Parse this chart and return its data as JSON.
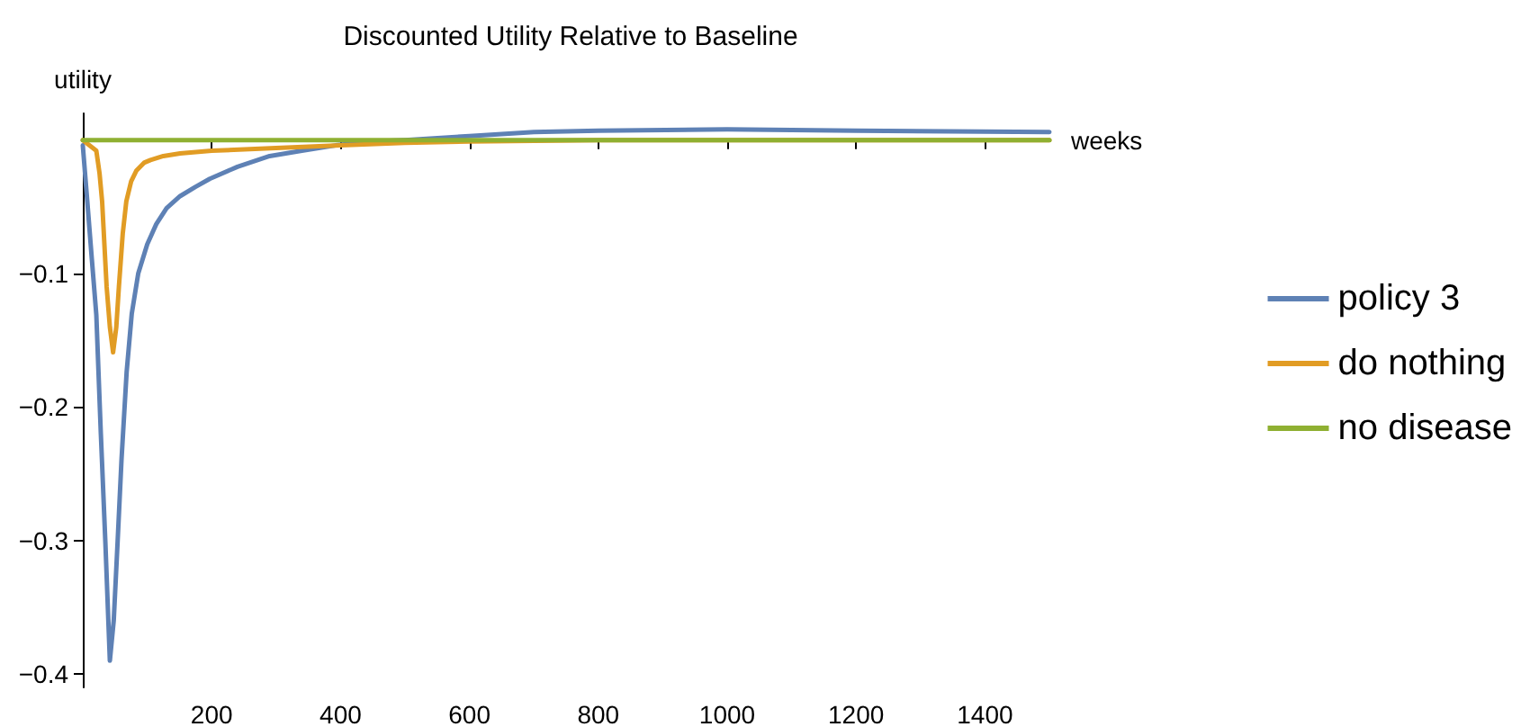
{
  "chart_data": {
    "type": "line",
    "title": "Discounted Utility Relative to Baseline",
    "xlabel": "weeks",
    "ylabel": "utility",
    "xlim": [
      0,
      1500
    ],
    "ylim": [
      -0.41,
      0.02
    ],
    "xticks": [
      200,
      400,
      600,
      800,
      1000,
      1200,
      1400
    ],
    "yticks": [
      -0.4,
      -0.3,
      -0.2,
      -0.1
    ],
    "grid": false,
    "legend": "right",
    "marker": "none",
    "line_style": "solid",
    "series": [
      {
        "name": "policy 3",
        "color": "#5e81b5",
        "x": [
          0,
          7,
          14,
          21,
          28,
          35,
          42,
          48,
          54,
          60,
          68,
          76,
          86,
          100,
          114,
          130,
          151,
          175,
          197,
          240,
          290,
          340,
          392,
          450,
          500,
          600,
          700,
          800,
          1000,
          1200,
          1500
        ],
        "values": [
          -0.004,
          -0.046,
          -0.089,
          -0.131,
          -0.22,
          -0.301,
          -0.39,
          -0.36,
          -0.301,
          -0.24,
          -0.174,
          -0.13,
          -0.1,
          -0.078,
          -0.063,
          -0.051,
          -0.042,
          -0.035,
          -0.029,
          -0.02,
          -0.012,
          -0.008,
          -0.004,
          -0.001,
          0,
          0.003,
          0.006,
          0.007,
          0.008,
          0.007,
          0.006
        ]
      },
      {
        "name": "do nothing",
        "color": "#e19c24",
        "x": [
          0,
          21,
          26,
          30,
          37,
          42,
          47,
          52,
          56,
          62,
          67.5,
          75,
          83,
          95,
          105,
          125,
          151,
          200,
          300,
          400,
          500,
          600,
          800,
          1000,
          1200,
          1500
        ],
        "values": [
          0,
          -0.008,
          -0.025,
          -0.046,
          -0.11,
          -0.14,
          -0.159,
          -0.14,
          -0.11,
          -0.07,
          -0.046,
          -0.031,
          -0.023,
          -0.017,
          -0.015,
          -0.012,
          -0.01,
          -0.008,
          -0.006,
          -0.004,
          -0.002,
          -0.001,
          0,
          0,
          0,
          0
        ]
      },
      {
        "name": "no disease",
        "color": "#8fb032",
        "x": [
          0,
          1500
        ],
        "values": [
          0,
          0
        ]
      }
    ]
  }
}
